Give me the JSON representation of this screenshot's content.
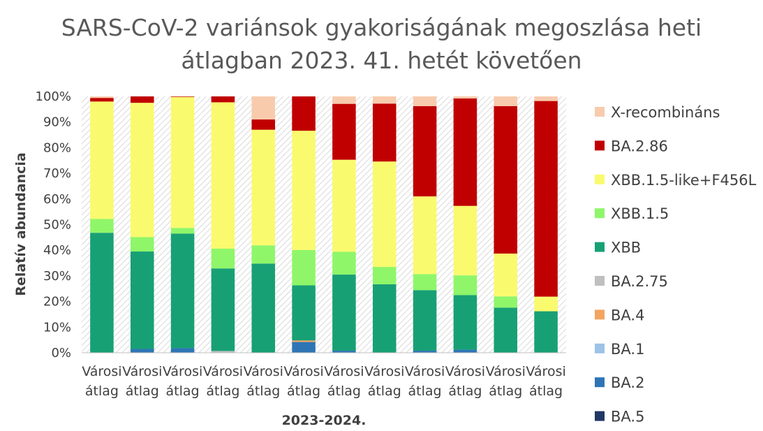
{
  "chart_data": {
    "type": "bar",
    "stacked": true,
    "title_lines": [
      "SARS-CoV-2 variánsok gyakoriságának megoszlása heti",
      "átlagban 2023. 41. hetét követően"
    ],
    "xlabel": "2023-2024.",
    "ylabel": "Relatív abundancia",
    "ylim": [
      0,
      100
    ],
    "y_ticks": [
      "0%",
      "10%",
      "20%",
      "30%",
      "40%",
      "50%",
      "60%",
      "70%",
      "80%",
      "90%",
      "100%"
    ],
    "grid": false,
    "legend_position": "right",
    "categories": [
      [
        "Városi",
        "átlag"
      ],
      [
        "Városi",
        "átlag"
      ],
      [
        "Városi",
        "átlag"
      ],
      [
        "Városi",
        "átlag"
      ],
      [
        "Városi",
        "átlag"
      ],
      [
        "Városi",
        "átlag"
      ],
      [
        "Városi",
        "átlag"
      ],
      [
        "Városi",
        "átlag"
      ],
      [
        "Városi",
        "átlag"
      ],
      [
        "Városi",
        "átlag"
      ],
      [
        "Városi",
        "átlag"
      ],
      [
        "Városi",
        "átlag"
      ]
    ],
    "series": [
      {
        "name": "BA.5",
        "color": "#1F3864",
        "values": [
          0,
          0,
          0,
          0,
          0,
          0,
          0,
          0,
          0,
          0,
          0,
          0
        ]
      },
      {
        "name": "BA.2",
        "color": "#2E75B6",
        "values": [
          0,
          1.5,
          1.8,
          0,
          0,
          4.2,
          0.8,
          0,
          0.8,
          1.2,
          0,
          0
        ]
      },
      {
        "name": "BA.1",
        "color": "#9DC3E6",
        "values": [
          0,
          0,
          0,
          0,
          0,
          0,
          0,
          0,
          0,
          0,
          0,
          0
        ]
      },
      {
        "name": "BA.4",
        "color": "#F4A460",
        "values": [
          0,
          0,
          0,
          0,
          0,
          0.6,
          0,
          0,
          0,
          0,
          0,
          0
        ]
      },
      {
        "name": "BA.2.75",
        "color": "#BFBFBF",
        "values": [
          0,
          0,
          0,
          0.7,
          0,
          0,
          0,
          0,
          0,
          0,
          0,
          0
        ]
      },
      {
        "name": "XBB",
        "color": "#18A075",
        "values": [
          46.8,
          38,
          44.7,
          32.2,
          34.8,
          21.5,
          29.7,
          26.7,
          23.6,
          21.3,
          17.6,
          16.2
        ]
      },
      {
        "name": "XBB.1.5",
        "color": "#8FF66A",
        "values": [
          5.4,
          5.6,
          2.2,
          7.7,
          7.1,
          13.8,
          8.9,
          6.8,
          6.3,
          7.7,
          4.4,
          0
        ]
      },
      {
        "name": "XBB.1.5-like+F456L",
        "color": "#FAFA6E",
        "values": [
          45.8,
          52.4,
          51.1,
          57.1,
          45.1,
          46.5,
          35.9,
          41.1,
          30.3,
          27.1,
          16.7,
          5.7
        ]
      },
      {
        "name": "BA.2.86",
        "color": "#C00000",
        "values": [
          1.4,
          2.5,
          0.2,
          2.3,
          4.0,
          13.4,
          21.8,
          22.6,
          35.2,
          41.9,
          57.5,
          76.3
        ]
      },
      {
        "name": "X-recombináns",
        "color": "#F8CBAD",
        "values": [
          0.6,
          0,
          0,
          0,
          9.0,
          0,
          2.9,
          2.8,
          3.8,
          0.8,
          3.8,
          1.8
        ]
      }
    ],
    "legend_order": [
      "X-recombináns",
      "BA.2.86",
      "XBB.1.5-like+F456L",
      "XBB.1.5",
      "XBB",
      "BA.2.75",
      "BA.4",
      "BA.1",
      "BA.2",
      "BA.5"
    ]
  }
}
